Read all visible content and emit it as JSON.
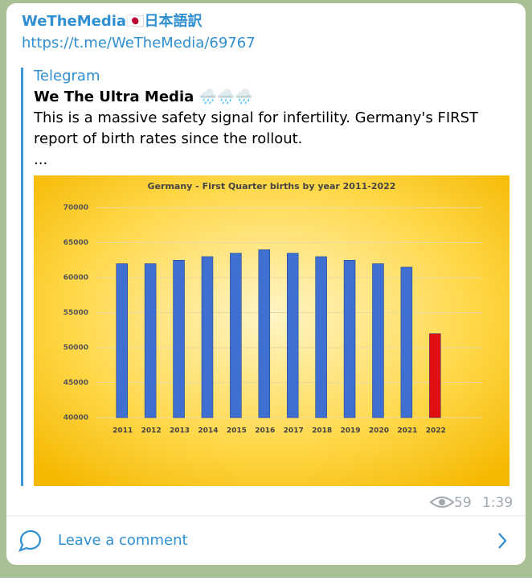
{
  "header": {
    "channel": "WeTheMedia🇯🇵日本語訳",
    "link": "https://t.me/WeTheMedia/69767"
  },
  "post": {
    "source": "Telegram",
    "author": "We The Ultra Media 🌧️🌧️🌧️",
    "text": [
      "This is a massive safety signal for infertility. Germany's FIRST",
      "report of birth rates since the rollout.",
      "..."
    ],
    "chart_data": {
      "type": "bar",
      "title": "Germany - First Quarter births by year 2011-2022",
      "categories": [
        "2011",
        "2012",
        "2013",
        "2014",
        "2015",
        "2016",
        "2017",
        "2018",
        "2019",
        "2020",
        "2021",
        "2022"
      ],
      "values": [
        62000,
        62000,
        62500,
        63000,
        63500,
        64000,
        63500,
        63000,
        62500,
        62000,
        61500,
        52000
      ],
      "colors": [
        "#3f6fd1",
        "#3f6fd1",
        "#3f6fd1",
        "#3f6fd1",
        "#3f6fd1",
        "#3f6fd1",
        "#3f6fd1",
        "#3f6fd1",
        "#3f6fd1",
        "#3f6fd1",
        "#3f6fd1",
        "#e01010"
      ],
      "ylim": [
        40000,
        70000
      ],
      "yticks": [
        40000,
        45000,
        50000,
        55000,
        60000,
        65000,
        70000
      ],
      "grid": true
    },
    "views": 59,
    "time": "1:39"
  },
  "footer": {
    "comment": "Leave a comment"
  }
}
